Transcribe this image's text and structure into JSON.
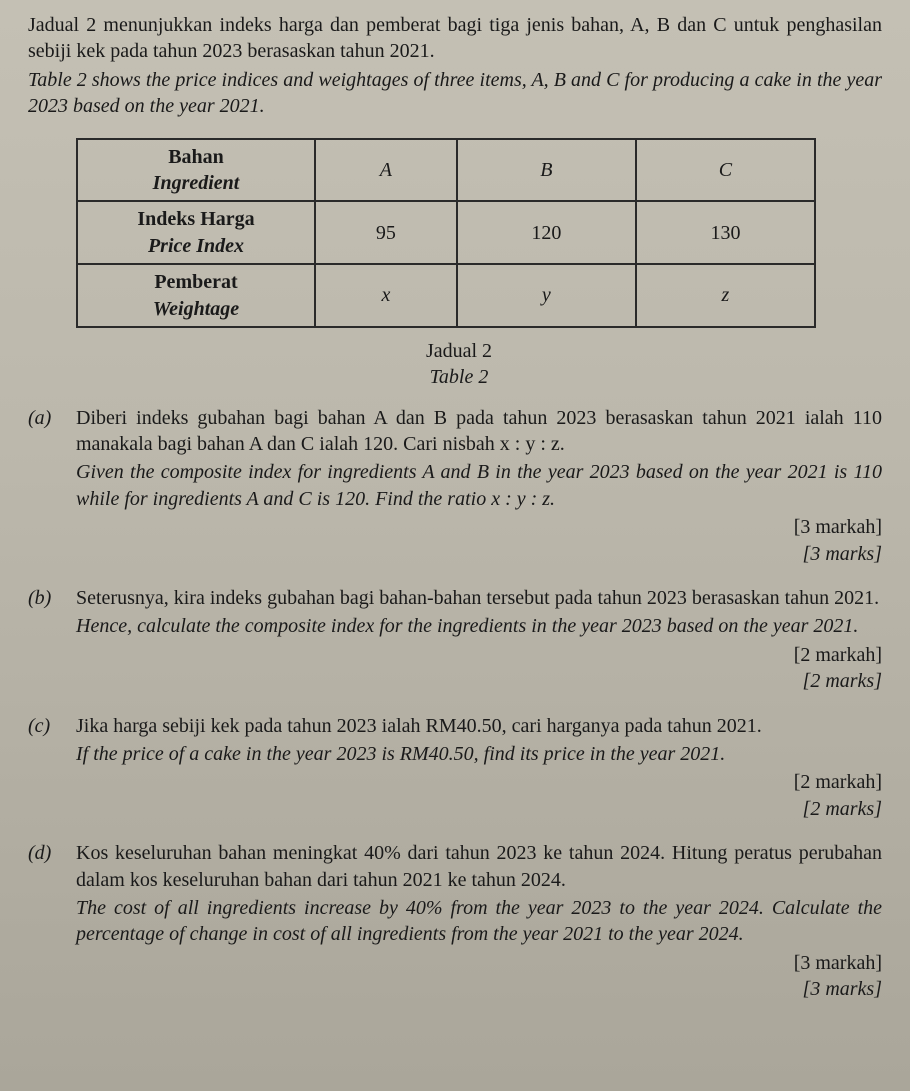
{
  "intro": {
    "bm_line1": "Jadual 2 menunjukkan indeks harga dan pemberat bagi tiga jenis bahan, A, B dan C untuk penghasilan sebiji kek pada tahun 2023 berasaskan tahun 2021.",
    "en_line1": "Table 2 shows the price indices and weightages of three items, A, B and C for producing a cake in the year 2023 based on the year 2021."
  },
  "table": {
    "header_bm": "Bahan",
    "header_en": "Ingredient",
    "cols": [
      "A",
      "B",
      "C"
    ],
    "row1_bm": "Indeks Harga",
    "row1_en": "Price Index",
    "row1_vals": [
      "95",
      "120",
      "130"
    ],
    "row2_bm": "Pemberat",
    "row2_en": "Weightage",
    "row2_vals": [
      "x",
      "y",
      "z"
    ],
    "caption_bm": "Jadual 2",
    "caption_en": "Table 2"
  },
  "questions": {
    "a": {
      "label": "(a)",
      "bm": "Diberi indeks gubahan bagi bahan A dan B pada tahun 2023 berasaskan tahun 2021 ialah 110 manakala bagi bahan A dan C ialah 120. Cari nisbah x : y : z.",
      "en": "Given the composite index for ingredients A and B in the year 2023 based on the year 2021 is 110 while for ingredients A and C is 120. Find the ratio x : y : z.",
      "marks_bm": "[3 markah]",
      "marks_en": "[3 marks]"
    },
    "b": {
      "label": "(b)",
      "bm": "Seterusnya, kira indeks gubahan bagi bahan-bahan tersebut pada tahun 2023 berasaskan tahun 2021.",
      "en": "Hence, calculate the composite index for the ingredients in the year 2023 based on the year 2021.",
      "marks_bm": "[2 markah]",
      "marks_en": "[2 marks]"
    },
    "c": {
      "label": "(c)",
      "bm": "Jika harga sebiji kek pada tahun 2023 ialah RM40.50, cari harganya pada tahun 2021.",
      "en": "If the price of a cake in the year 2023 is RM40.50, find its price in the year 2021.",
      "marks_bm": "[2 markah]",
      "marks_en": "[2 marks]"
    },
    "d": {
      "label": "(d)",
      "bm": "Kos keseluruhan bahan meningkat 40% dari tahun 2023 ke tahun 2024. Hitung peratus perubahan dalam kos keseluruhan bahan dari tahun 2021 ke tahun 2024.",
      "en": "The cost of all ingredients increase by 40% from the year 2023 to the year 2024. Calculate the percentage of change in cost of all ingredients from the year 2021 to the year 2024.",
      "marks_bm": "[3 markah]",
      "marks_en": "[3 marks]"
    }
  }
}
